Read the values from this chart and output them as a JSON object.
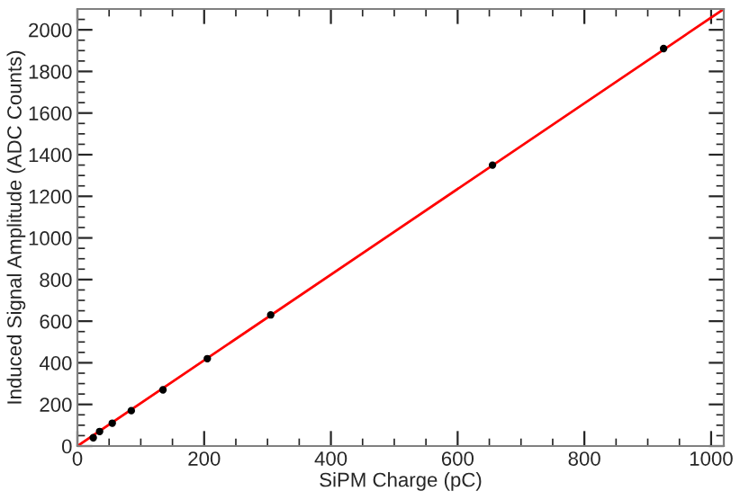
{
  "chart_data": {
    "type": "scatter",
    "xlabel": "SiPM Charge (pC)",
    "ylabel": "Induced Signal Amplitude (ADC Counts)",
    "x": [
      25,
      35,
      55,
      85,
      135,
      205,
      305,
      655,
      925
    ],
    "series": [
      {
        "color": "#000000",
        "marker": "circle",
        "values": [
          40,
          70,
          110,
          170,
          270,
          420,
          630,
          1350,
          1910
        ]
      },
      {
        "type": "line",
        "color": "#ff0000",
        "x": [
          0,
          1020
        ],
        "values": [
          0,
          2100
        ]
      }
    ],
    "xlim": [
      0,
      1020
    ],
    "ylim": [
      0,
      2100
    ],
    "xticks": [
      0,
      200,
      400,
      600,
      800,
      1000
    ],
    "yticks": [
      0,
      200,
      400,
      600,
      800,
      1000,
      1200,
      1400,
      1600,
      1800,
      2000
    ],
    "grid": false
  }
}
